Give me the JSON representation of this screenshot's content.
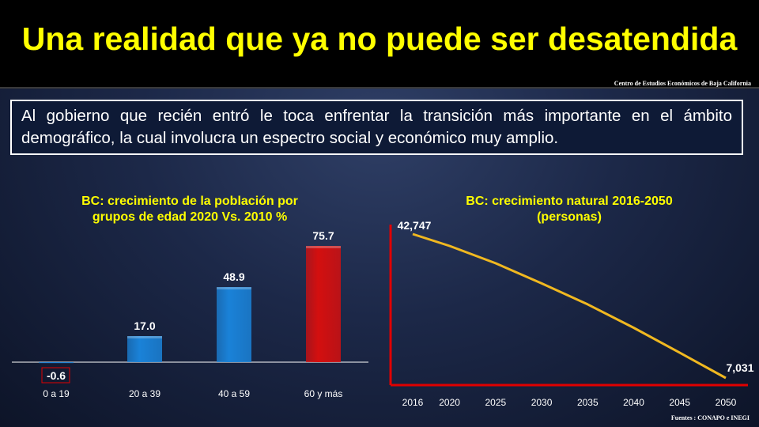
{
  "header": {
    "title": "Una realidad que ya no puede ser desatendida",
    "center_label": "Centro de Estudios  Económicos  de  Baja California"
  },
  "intro": {
    "text": "Al gobierno que recién entró le toca enfrentar la transición más importante en el ámbito demográfico, la cual involucra un espectro social y económico muy amplio."
  },
  "footer": {
    "source": "Fuentes :  CONAPO  e INEGI"
  },
  "colors": {
    "title": "#ffff00",
    "bar_blue": "#1a82d8",
    "bar_red": "#d40f0f",
    "line": "#f0b820",
    "axis_red": "#e00000"
  },
  "chart_data": [
    {
      "type": "bar",
      "title": "BC: crecimiento de la población por grupos de edad 2020 Vs. 2010 %",
      "title_line1": "BC: crecimiento de la población por",
      "title_line2": "grupos de edad 2020 Vs. 2010 %",
      "categories": [
        "0 a 19",
        "20 a 39",
        "40 a 59",
        "60 y más"
      ],
      "values": [
        -0.6,
        17.0,
        48.9,
        75.7
      ],
      "value_labels": [
        "-0.6",
        "17.0",
        "48.9",
        "75.7"
      ],
      "bar_colors": [
        "#1a82d8",
        "#1a82d8",
        "#1a82d8",
        "#d40f0f"
      ],
      "ylim": [
        -0.6,
        80
      ],
      "xlabel": "",
      "ylabel": ""
    },
    {
      "type": "line",
      "title": "BC: crecimiento natural 2016-2050 (personas)",
      "title_line1": "BC: crecimiento natural 2016-2050",
      "title_line2": "(personas)",
      "x": [
        2016,
        2020,
        2025,
        2030,
        2035,
        2040,
        2045,
        2050
      ],
      "x_labels": [
        "2016",
        "2020",
        "2025",
        "2030",
        "2035",
        "2040",
        "2045",
        "2050"
      ],
      "values": [
        42747,
        39800,
        35500,
        30500,
        25300,
        19500,
        13300,
        7031
      ],
      "point_labels": [
        {
          "index": 0,
          "text": "42,747"
        },
        {
          "index": 7,
          "text": "7,031"
        }
      ],
      "ylim": [
        0,
        48000
      ],
      "xlabel": "",
      "ylabel": ""
    }
  ]
}
